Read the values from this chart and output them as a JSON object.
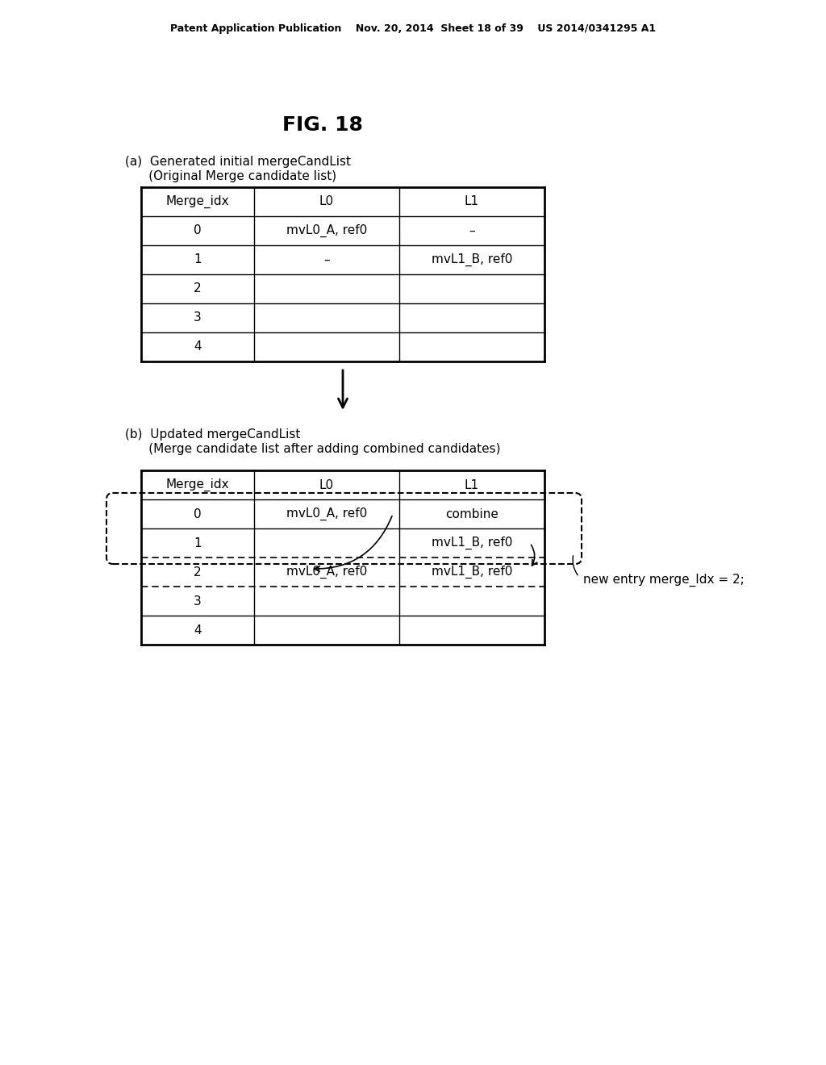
{
  "header_text": "Patent Application Publication    Nov. 20, 2014  Sheet 18 of 39    US 2014/0341295 A1",
  "fig_title": "FIG. 18",
  "section_a_label": "(a)  Generated initial mergeCandList",
  "section_a_sublabel": "      (Original Merge candidate list)",
  "section_b_label": "(b)  Updated mergeCandList",
  "section_b_sublabel": "      (Merge candidate list after adding combined candidates)",
  "table_a": {
    "headers": [
      "Merge_idx",
      "L0",
      "L1"
    ],
    "rows": [
      [
        "0",
        "mvL0_A, ref0",
        "–"
      ],
      [
        "1",
        "–",
        "mvL1_B, ref0"
      ],
      [
        "2",
        "",
        ""
      ],
      [
        "3",
        "",
        ""
      ],
      [
        "4",
        "",
        ""
      ]
    ]
  },
  "table_b": {
    "headers": [
      "Merge_idx",
      "L0",
      "L1"
    ],
    "rows": [
      [
        "0",
        "mvL0_A, ref0",
        "combine"
      ],
      [
        "1",
        "",
        "mvL1_B, ref0"
      ],
      [
        "2",
        "mvL0_A, ref0",
        "mvL1_B, ref0"
      ],
      [
        "3",
        "",
        ""
      ],
      [
        "4",
        "",
        ""
      ]
    ]
  },
  "annotation": "new entry merge_Idx = 2;",
  "bg_color": "#ffffff",
  "text_color": "#000000",
  "font_size": 11,
  "header_font_size": 9
}
